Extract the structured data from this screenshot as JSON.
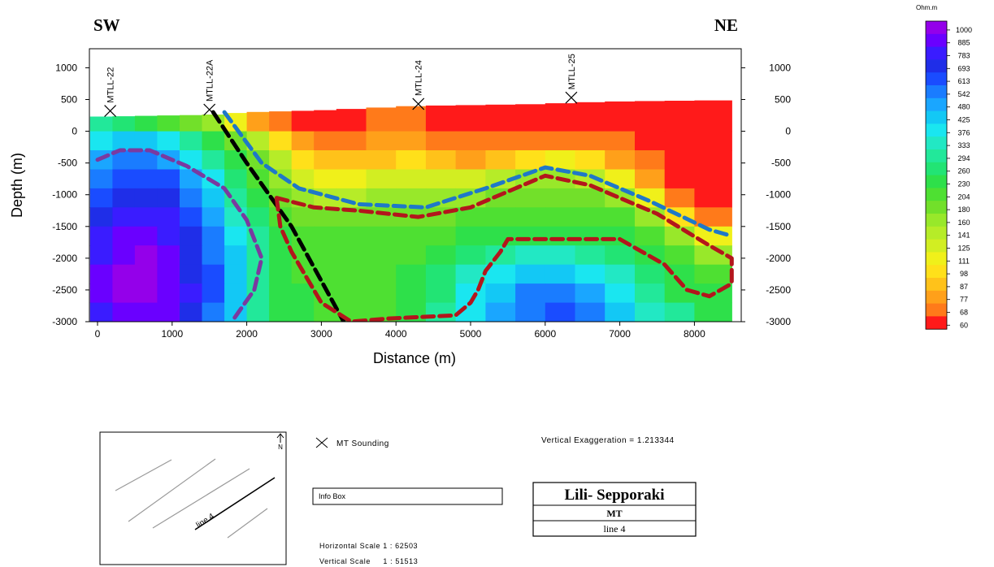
{
  "chart_data": {
    "type": "heatmap",
    "title_left": "SW",
    "title_right": "NE",
    "xlabel": "Distance (m)",
    "ylabel": "Depth (m)",
    "xlim": [
      -100,
      8500
    ],
    "ylim": [
      -3000,
      1300
    ],
    "x_ticks": [
      0,
      1000,
      2000,
      3000,
      4000,
      5000,
      6000,
      7000,
      8000
    ],
    "y_ticks": [
      1000,
      500,
      0,
      -500,
      -1000,
      -1500,
      -2000,
      -2500,
      -3000
    ],
    "color_unit": "Ohm.m",
    "colorbar": [
      {
        "label": "1000",
        "color": "#9400ea"
      },
      {
        "label": "885",
        "color": "#6a00ff"
      },
      {
        "label": "783",
        "color": "#3a1cff"
      },
      {
        "label": "693",
        "color": "#1f2ee8"
      },
      {
        "label": "613",
        "color": "#1a4cff"
      },
      {
        "label": "542",
        "color": "#1a7cff"
      },
      {
        "label": "480",
        "color": "#1aa6ff"
      },
      {
        "label": "425",
        "color": "#13c8f5"
      },
      {
        "label": "376",
        "color": "#1ae6f0"
      },
      {
        "label": "333",
        "color": "#22e8c4"
      },
      {
        "label": "294",
        "color": "#22e89a"
      },
      {
        "label": "260",
        "color": "#22e474"
      },
      {
        "label": "230",
        "color": "#2ee04a"
      },
      {
        "label": "204",
        "color": "#4ee032"
      },
      {
        "label": "180",
        "color": "#72e02a"
      },
      {
        "label": "160",
        "color": "#98e82a"
      },
      {
        "label": "141",
        "color": "#b6ec28"
      },
      {
        "label": "125",
        "color": "#d2ee22"
      },
      {
        "label": "111",
        "color": "#f0f01a"
      },
      {
        "label": "98",
        "color": "#ffe01a"
      },
      {
        "label": "87",
        "color": "#ffc21a"
      },
      {
        "label": "77",
        "color": "#ffa01a"
      },
      {
        "label": "68",
        "color": "#ff7a1a"
      },
      {
        "label": "60",
        "color": "#ff1a1a"
      }
    ],
    "soundings": [
      {
        "name": "MTLL-22",
        "x": 170,
        "elev": 320
      },
      {
        "name": "MTLL-22A",
        "x": 1500,
        "elev": 340
      },
      {
        "name": "MTLL-24",
        "x": 4300,
        "elev": 430
      },
      {
        "name": "MTLL-25",
        "x": 6350,
        "elev": 530
      }
    ],
    "topography": [
      [
        0,
        230
      ],
      [
        1500,
        260
      ],
      [
        2000,
        300
      ],
      [
        3000,
        330
      ],
      [
        4300,
        400
      ],
      [
        6000,
        430
      ],
      [
        6350,
        450
      ],
      [
        7000,
        470
      ],
      [
        8500,
        490
      ]
    ],
    "grid_x": [
      -100,
      200,
      500,
      800,
      1100,
      1400,
      1700,
      2000,
      2300,
      2600,
      2900,
      3200,
      3600,
      4000,
      4400,
      4800,
      5200,
      5600,
      6000,
      6400,
      6800,
      7200,
      7600,
      8000,
      8500
    ],
    "grid_depths": [
      500,
      0,
      -300,
      -600,
      -900,
      -1200,
      -1500,
      -1800,
      -2100,
      -2400,
      -2700,
      -3000
    ],
    "resistivity_grid": [
      [
        10,
        11,
        12,
        13,
        14,
        15,
        18,
        21,
        22,
        23,
        23,
        23,
        22,
        22,
        23,
        23,
        23,
        23,
        23,
        23,
        23,
        23,
        23,
        23
      ],
      [
        8,
        7,
        7,
        8,
        10,
        12,
        14,
        16,
        19,
        21,
        22,
        22,
        21,
        21,
        22,
        22,
        22,
        22,
        22,
        22,
        22,
        23,
        23,
        23
      ],
      [
        6,
        5,
        5,
        6,
        8,
        10,
        12,
        14,
        16,
        19,
        20,
        20,
        20,
        19,
        20,
        21,
        20,
        19,
        18,
        19,
        21,
        22,
        23,
        23
      ],
      [
        5,
        4,
        4,
        4,
        6,
        8,
        11,
        13,
        15,
        17,
        18,
        18,
        17,
        17,
        17,
        17,
        16,
        15,
        15,
        16,
        18,
        21,
        23,
        23
      ],
      [
        4,
        3,
        3,
        3,
        5,
        7,
        10,
        12,
        14,
        15,
        16,
        16,
        15,
        15,
        15,
        15,
        14,
        14,
        14,
        14,
        15,
        18,
        22,
        23
      ],
      [
        3,
        2,
        2,
        2,
        4,
        6,
        9,
        11,
        13,
        14,
        14,
        14,
        14,
        14,
        14,
        13,
        13,
        13,
        13,
        13,
        13,
        15,
        19,
        22
      ],
      [
        2,
        1,
        1,
        2,
        3,
        5,
        8,
        10,
        12,
        13,
        13,
        13,
        13,
        13,
        13,
        12,
        12,
        12,
        12,
        12,
        12,
        13,
        15,
        18
      ],
      [
        2,
        1,
        0,
        1,
        3,
        5,
        7,
        10,
        12,
        13,
        13,
        13,
        13,
        13,
        12,
        11,
        10,
        9,
        9,
        10,
        11,
        12,
        13,
        15
      ],
      [
        1,
        0,
        0,
        1,
        3,
        4,
        7,
        10,
        12,
        13,
        13,
        13,
        13,
        12,
        11,
        9,
        8,
        7,
        7,
        8,
        9,
        11,
        12,
        13
      ],
      [
        1,
        0,
        0,
        1,
        2,
        4,
        7,
        10,
        12,
        12,
        13,
        13,
        13,
        12,
        11,
        8,
        7,
        5,
        5,
        6,
        8,
        10,
        12,
        12
      ],
      [
        2,
        1,
        1,
        1,
        3,
        5,
        7,
        10,
        12,
        12,
        13,
        13,
        13,
        12,
        10,
        8,
        6,
        5,
        4,
        5,
        7,
        9,
        10,
        12
      ]
    ],
    "interpretation_lines": [
      {
        "color": "#000000",
        "points": [
          [
            1550,
            300
          ],
          [
            2000,
            -500
          ],
          [
            2600,
            -1500
          ],
          [
            3300,
            -3000
          ]
        ]
      },
      {
        "color": "#1f78c8",
        "points": [
          [
            1700,
            300
          ],
          [
            2200,
            -500
          ],
          [
            2700,
            -900
          ],
          [
            3500,
            -1150
          ],
          [
            4400,
            -1200
          ],
          [
            5200,
            -900
          ],
          [
            6000,
            -570
          ],
          [
            6600,
            -700
          ],
          [
            7400,
            -1100
          ],
          [
            8200,
            -1550
          ],
          [
            8500,
            -1650
          ]
        ]
      },
      {
        "color": "#7a3aa0",
        "points": [
          [
            0,
            -450
          ],
          [
            300,
            -300
          ],
          [
            700,
            -300
          ],
          [
            1200,
            -550
          ],
          [
            1700,
            -900
          ],
          [
            2000,
            -1400
          ],
          [
            2200,
            -2000
          ],
          [
            2100,
            -2500
          ],
          [
            1800,
            -3000
          ]
        ]
      },
      {
        "color": "#b3161c",
        "points": [
          [
            2400,
            -1050
          ],
          [
            2900,
            -1200
          ],
          [
            3500,
            -1250
          ],
          [
            4300,
            -1350
          ],
          [
            5000,
            -1200
          ],
          [
            6000,
            -700
          ],
          [
            6600,
            -850
          ],
          [
            7500,
            -1300
          ],
          [
            8200,
            -1800
          ],
          [
            8500,
            -2000
          ],
          [
            8500,
            -2400
          ],
          [
            8200,
            -2600
          ],
          [
            7900,
            -2500
          ],
          [
            7600,
            -2100
          ],
          [
            7000,
            -1700
          ],
          [
            6200,
            -1700
          ],
          [
            5500,
            -1700
          ],
          [
            5400,
            -1900
          ],
          [
            5200,
            -2200
          ],
          [
            5100,
            -2500
          ],
          [
            5000,
            -2700
          ],
          [
            4800,
            -2900
          ],
          [
            3900,
            -2950
          ],
          [
            3400,
            -3000
          ],
          [
            3000,
            -2700
          ],
          [
            2800,
            -2300
          ],
          [
            2600,
            -1900
          ],
          [
            2450,
            -1500
          ],
          [
            2400,
            -1050
          ]
        ]
      }
    ]
  },
  "legend": {
    "mt_sounding_label": "MT Sounding",
    "info_box_label": "Info Box",
    "vertical_exaggeration": "Vertical Exaggeration = 1.213344",
    "horizontal_scale": "Horizontal Scale 1 : 62503",
    "vertical_scale": "Vertical Scale     1 : 51513",
    "project_title": "Lili- Sepporaki",
    "method": "MT",
    "line_name": "line 4",
    "inset_line_label": "line 4",
    "north_label": "N"
  }
}
